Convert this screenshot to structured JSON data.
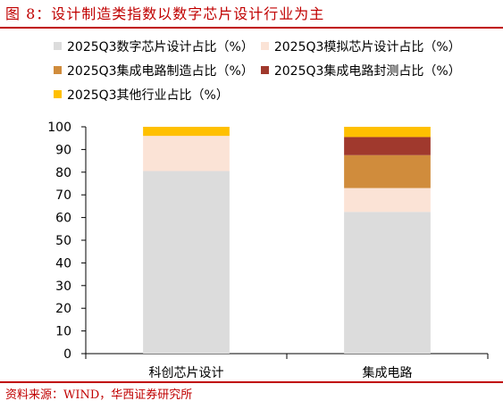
{
  "figure": {
    "title": "图 8：设计制造类指数以数字芯片设计行业为主",
    "source": "资料来源：WIND，华西证券研究所"
  },
  "chart_data": {
    "type": "bar",
    "stacked": true,
    "categories": [
      "科创芯片设计",
      "集成电路"
    ],
    "series": [
      {
        "name": "2025Q3数字芯片设计占比（%）",
        "color": "#dcdcdc",
        "values": [
          80.5,
          62.5
        ]
      },
      {
        "name": "2025Q3模拟芯片设计占比（%）",
        "color": "#fbe3d6",
        "values": [
          15.5,
          10.5
        ]
      },
      {
        "name": "2025Q3集成电路制造占比（%）",
        "color": "#d08c3c",
        "values": [
          0,
          14.5
        ]
      },
      {
        "name": "2025Q3集成电路封测占比（%）",
        "color": "#a0392d",
        "values": [
          0,
          8
        ]
      },
      {
        "name": "2025Q3其他行业占比（%）",
        "color": "#ffc000",
        "values": [
          4,
          4.5
        ]
      }
    ],
    "ylim": [
      0,
      100
    ],
    "yticks": [
      0,
      10,
      20,
      30,
      40,
      50,
      60,
      70,
      80,
      90,
      100
    ],
    "xlabel": "",
    "ylabel": "",
    "grid": false,
    "legend_position": "top"
  }
}
